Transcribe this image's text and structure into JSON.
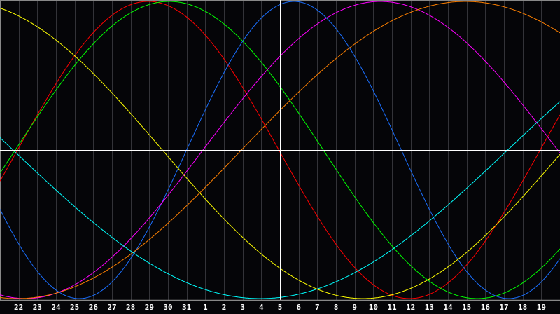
{
  "chart_data": {
    "type": "line",
    "title": "",
    "xlabel": "",
    "ylabel": "",
    "x_labels": [
      "22",
      "23",
      "24",
      "25",
      "26",
      "27",
      "28",
      "29",
      "30",
      "31",
      "1",
      "2",
      "3",
      "4",
      "5",
      "6",
      "7",
      "8",
      "9",
      "10",
      "11",
      "12",
      "13",
      "14",
      "15",
      "16",
      "17",
      "18",
      "19"
    ],
    "ylim": [
      -1,
      1
    ],
    "grid": "vertical per day",
    "cursor_label": "5",
    "series": [
      {
        "color": "#ff0000",
        "period_days": 28,
        "zero_up_index": -0.06
      },
      {
        "color": "#00ff00",
        "period_days": 33,
        "zero_up_index": -0.18
      },
      {
        "color": "#1a6fff",
        "period_days": 23,
        "zero_up_index": 9.0
      },
      {
        "color": "#ff00ff",
        "period_days": 38,
        "zero_up_index": 9.875
      },
      {
        "color": "#ff8000",
        "period_days": 48,
        "zero_up_index": 11.94
      },
      {
        "color": "#ffff00",
        "period_days": 43,
        "zero_up_index": -13.8
      },
      {
        "color": "#00ffff",
        "period_days": 53,
        "zero_up_index": -26.8
      }
    ]
  },
  "colors": {
    "background": "#050508",
    "grid": "#333338",
    "axis": "#888888",
    "cursor": "#ffffff"
  }
}
